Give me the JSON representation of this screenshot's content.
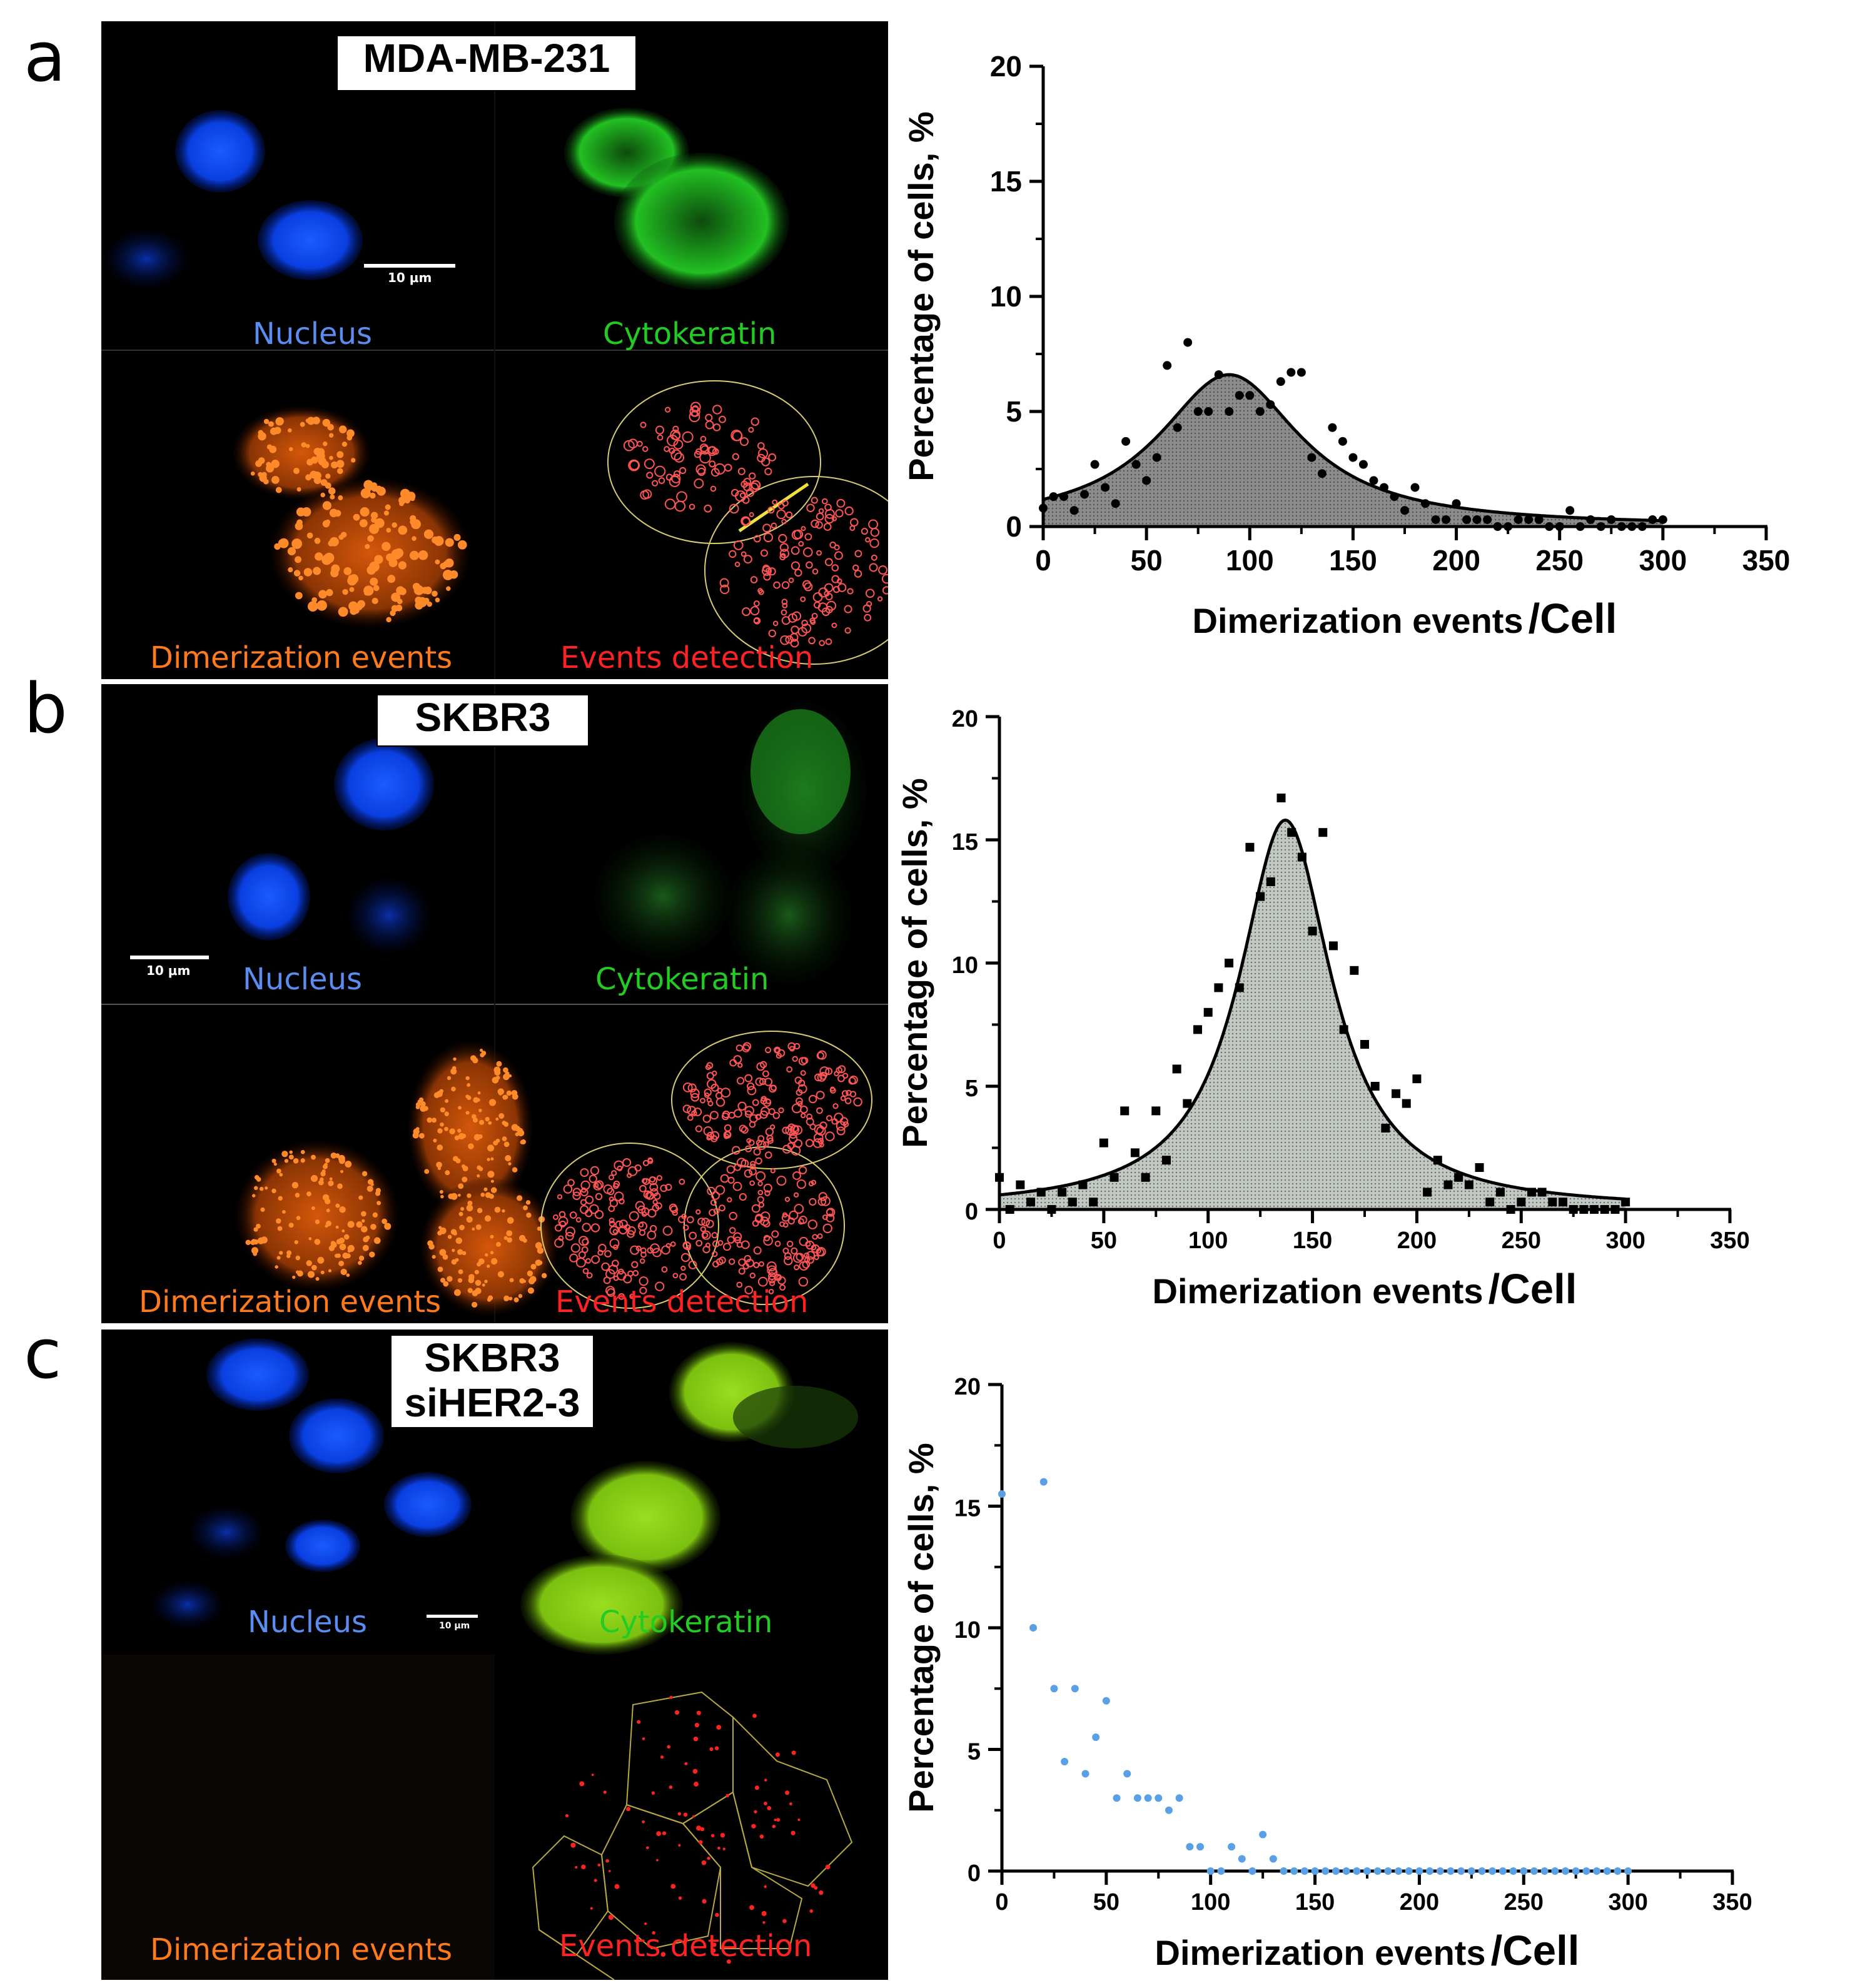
{
  "panels": [
    {
      "letter": "a",
      "cell_line": [
        "MDA-MB-231"
      ],
      "labels": {
        "nucleus": "Nucleus",
        "cytokeratin": "Cytokeratin",
        "dimerization": "Dimerization events",
        "detection": "Events detection"
      },
      "scale_bar": "10 μm",
      "colors": {
        "nucleus": "#5b8cf0",
        "cytokeratin": "#22cc22",
        "dimerization": "#ff7a1a",
        "detection": "#ff2222"
      }
    },
    {
      "letter": "b",
      "cell_line": [
        "SKBR3"
      ],
      "labels": {
        "nucleus": "Nucleus",
        "cytokeratin": "Cytokeratin",
        "dimerization": "Dimerization events",
        "detection": "Events detection"
      },
      "scale_bar": "10 μm",
      "colors": {
        "nucleus": "#5b8cf0",
        "cytokeratin": "#22cc22",
        "dimerization": "#ff7a1a",
        "detection": "#ff2222"
      }
    },
    {
      "letter": "c",
      "cell_line": [
        "SKBR3",
        "siHER2-3"
      ],
      "labels": {
        "nucleus": "Nucleus",
        "cytokeratin": "Cytokeratin",
        "dimerization": "Dimerization events",
        "detection": "Events detection"
      },
      "scale_bar": "10 μm",
      "colors": {
        "nucleus": "#5b8cf0",
        "cytokeratin": "#22cc22",
        "dimerization": "#ff7a1a",
        "detection": "#ff2222"
      }
    }
  ],
  "chart_data": [
    {
      "type": "scatter",
      "panel": "a",
      "xlabel": "Dimerization events",
      "xlabel_unit": "/Cell",
      "ylabel": "Percentage of cells, %",
      "xlim": [
        0,
        350
      ],
      "ylim": [
        0,
        20
      ],
      "xticks": [
        0,
        50,
        100,
        150,
        200,
        250,
        300,
        350
      ],
      "yticks": [
        0,
        5,
        10,
        15,
        20
      ],
      "marker_color": "#000000",
      "fill_color": "#8c8c8c",
      "fit": {
        "type": "lorentzian",
        "center": 90,
        "peak": 6.6,
        "hwhm": 42,
        "range": [
          0,
          300
        ]
      },
      "points": {
        "x": [
          0,
          5,
          10,
          15,
          20,
          25,
          30,
          35,
          40,
          45,
          50,
          55,
          60,
          65,
          70,
          75,
          80,
          85,
          90,
          95,
          100,
          105,
          110,
          115,
          120,
          125,
          130,
          135,
          140,
          145,
          150,
          155,
          160,
          165,
          170,
          175,
          180,
          185,
          190,
          195,
          200,
          205,
          210,
          215,
          220,
          225,
          230,
          235,
          240,
          245,
          250,
          255,
          260,
          265,
          270,
          275,
          280,
          285,
          290,
          295,
          300
        ],
        "y": [
          0.8,
          1.3,
          1.3,
          0.7,
          1.4,
          2.7,
          1.7,
          1.0,
          3.7,
          2.7,
          2.0,
          3.0,
          7.0,
          4.3,
          8.0,
          5.0,
          5.0,
          6.6,
          5.0,
          5.7,
          5.7,
          5.0,
          5.3,
          6.3,
          6.7,
          6.7,
          3.0,
          2.3,
          4.3,
          3.7,
          3.0,
          2.7,
          2.0,
          1.7,
          1.3,
          0.7,
          1.7,
          1.0,
          0.3,
          0.3,
          1.0,
          0.3,
          0.3,
          0.3,
          0.0,
          0.0,
          0.3,
          0.3,
          0.3,
          0.0,
          0.0,
          0.7,
          0.0,
          0.3,
          0.0,
          0.3,
          0.0,
          0.0,
          0.0,
          0.3,
          0.3
        ]
      }
    },
    {
      "type": "scatter",
      "panel": "b",
      "xlabel": "Dimerization events",
      "xlabel_unit": "/Cell",
      "ylabel": "Percentage of cells, %",
      "xlim": [
        0,
        350
      ],
      "ylim": [
        0,
        20
      ],
      "xticks": [
        0,
        50,
        100,
        150,
        200,
        250,
        300,
        350
      ],
      "yticks": [
        0,
        5,
        10,
        15,
        20
      ],
      "marker_color": "#000000",
      "fill_color": "#c2c8c2",
      "fit": {
        "type": "lorentzian",
        "center": 137,
        "peak": 15.8,
        "hwhm": 27,
        "range": [
          0,
          300
        ]
      },
      "points": {
        "x": [
          0,
          5,
          10,
          15,
          20,
          25,
          30,
          35,
          40,
          45,
          50,
          55,
          60,
          65,
          70,
          75,
          80,
          85,
          90,
          95,
          100,
          105,
          110,
          115,
          120,
          125,
          130,
          135,
          140,
          145,
          150,
          155,
          160,
          165,
          170,
          175,
          180,
          185,
          190,
          195,
          200,
          205,
          210,
          215,
          220,
          225,
          230,
          235,
          240,
          245,
          250,
          255,
          260,
          265,
          270,
          275,
          280,
          285,
          290,
          295,
          300
        ],
        "y": [
          1.3,
          0.0,
          1.0,
          0.3,
          0.7,
          0.0,
          0.7,
          0.3,
          1.0,
          0.3,
          2.7,
          1.3,
          4.0,
          2.3,
          1.3,
          4.0,
          2.0,
          5.7,
          4.3,
          7.3,
          8.0,
          9.0,
          10.0,
          9.0,
          14.7,
          12.7,
          13.3,
          16.7,
          15.3,
          14.3,
          11.3,
          15.3,
          10.7,
          7.3,
          9.7,
          6.7,
          5.0,
          3.3,
          4.7,
          4.3,
          5.3,
          0.7,
          2.0,
          1.0,
          1.3,
          1.0,
          1.7,
          0.3,
          0.7,
          0.0,
          0.3,
          0.7,
          0.7,
          0.3,
          0.3,
          0.0,
          0.0,
          0.0,
          0.0,
          0.0,
          0.3
        ]
      }
    },
    {
      "type": "scatter",
      "panel": "c",
      "xlabel": "Dimerization events",
      "xlabel_unit": "/Cell",
      "ylabel": "Percentage of cells, %",
      "xlim": [
        0,
        350
      ],
      "ylim": [
        0,
        20
      ],
      "xticks": [
        0,
        50,
        100,
        150,
        200,
        250,
        300,
        350
      ],
      "yticks": [
        0,
        5,
        10,
        15,
        20
      ],
      "marker_color": "#5aa0e6",
      "points": {
        "x": [
          0,
          15,
          20,
          25,
          30,
          35,
          40,
          45,
          50,
          55,
          60,
          65,
          70,
          75,
          80,
          85,
          90,
          95,
          100,
          105,
          110,
          115,
          120,
          125,
          130,
          135,
          140,
          145,
          150,
          155,
          160,
          165,
          170,
          175,
          180,
          185,
          190,
          195,
          200,
          205,
          210,
          215,
          220,
          225,
          230,
          235,
          240,
          245,
          250,
          255,
          260,
          265,
          270,
          275,
          280,
          285,
          290,
          295,
          300
        ],
        "y": [
          15.5,
          10.0,
          16.0,
          7.5,
          4.5,
          7.5,
          4.0,
          5.5,
          7.0,
          3.0,
          4.0,
          3.0,
          3.0,
          3.0,
          2.5,
          3.0,
          1.0,
          1.0,
          0.0,
          0.0,
          1.0,
          0.5,
          0.0,
          1.5,
          0.5,
          0.0,
          0.0,
          0.0,
          0.0,
          0.0,
          0.0,
          0.0,
          0.0,
          0.0,
          0.0,
          0.0,
          0.0,
          0.0,
          0.0,
          0.0,
          0.0,
          0.0,
          0.0,
          0.0,
          0.0,
          0.0,
          0.0,
          0.0,
          0.0,
          0.0,
          0.0,
          0.0,
          0.0,
          0.0,
          0.0,
          0.0,
          0.0,
          0.0,
          0.0
        ]
      }
    }
  ]
}
